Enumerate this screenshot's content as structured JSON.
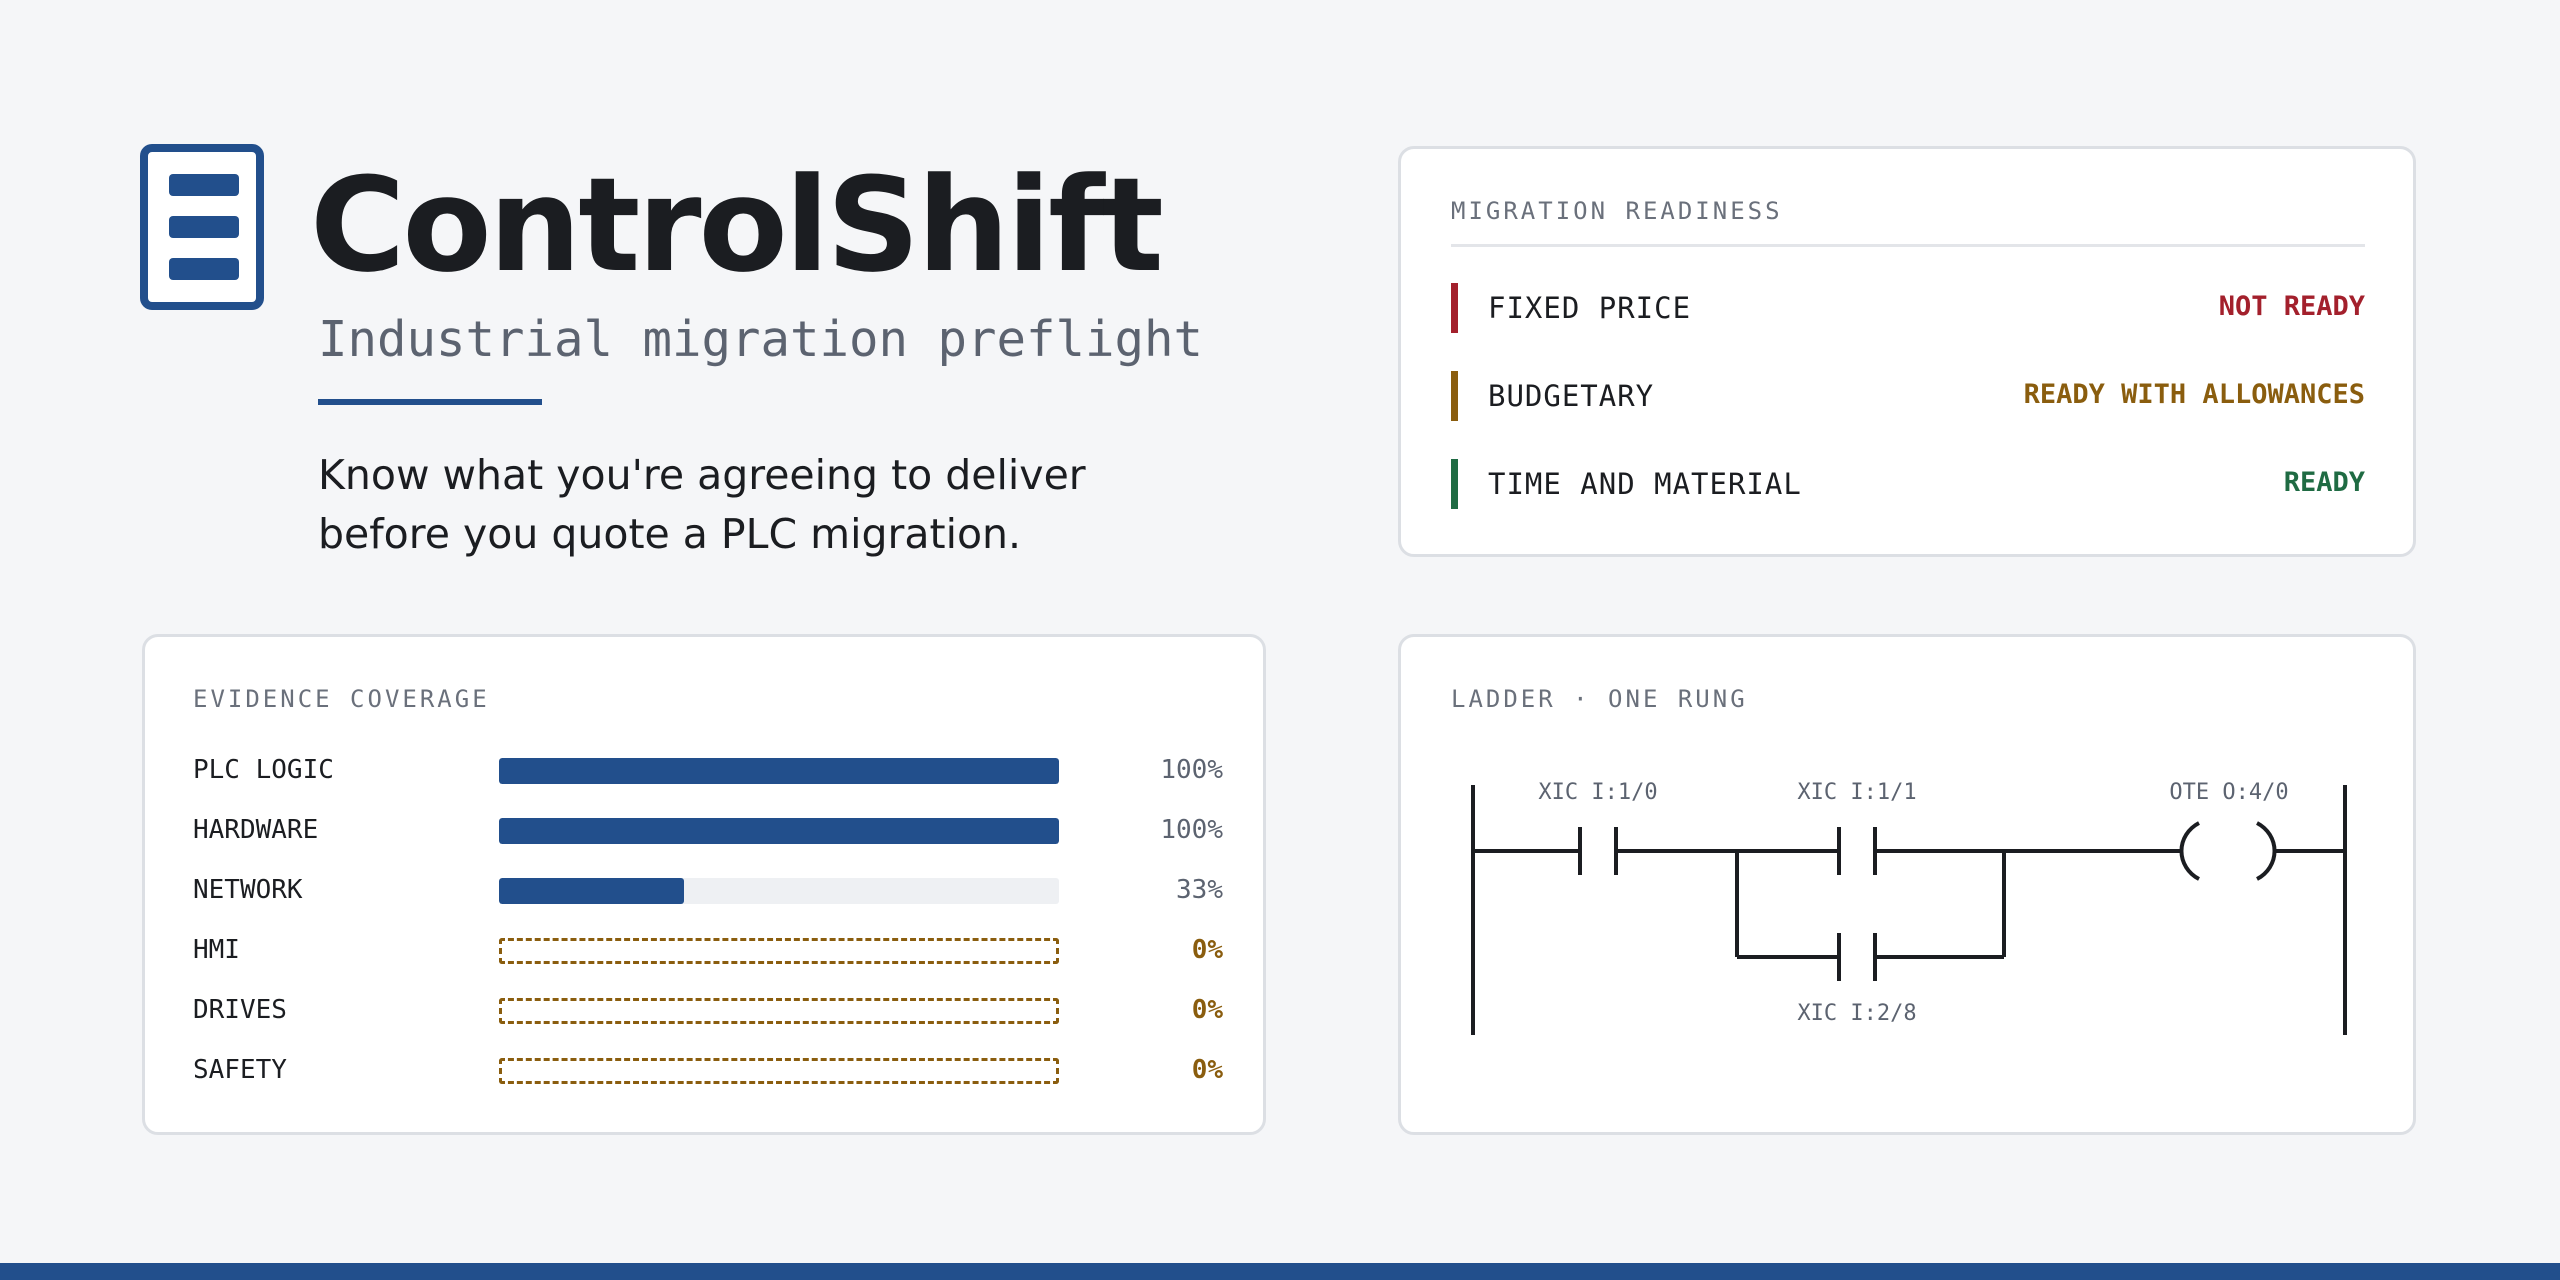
{
  "brand": {
    "logo_icon": "document-lines-icon",
    "name": "ControlShift",
    "subtitle": "Industrial migration preflight",
    "tagline_line1": "Know what you're agreeing to deliver",
    "tagline_line2": "before you quote a PLC migration."
  },
  "colors": {
    "accent": "#224f8c",
    "not_ready": "#a3202c",
    "allowances": "#8a5d0e",
    "ready": "#1f6b43",
    "text": "#1b1d21",
    "muted": "#5c6370"
  },
  "readiness": {
    "title": "MIGRATION READINESS",
    "rows": [
      {
        "name": "FIXED PRICE",
        "status": "NOT READY",
        "level": "not_ready"
      },
      {
        "name": "BUDGETARY",
        "status": "READY WITH ALLOWANCES",
        "level": "allowances"
      },
      {
        "name": "TIME AND MATERIAL",
        "status": "READY",
        "level": "ready"
      }
    ]
  },
  "evidence": {
    "title": "EVIDENCE COVERAGE",
    "rows": [
      {
        "label": "PLC LOGIC",
        "percent": 100,
        "percent_label": "100%"
      },
      {
        "label": "HARDWARE",
        "percent": 100,
        "percent_label": "100%"
      },
      {
        "label": "NETWORK",
        "percent": 33,
        "percent_label": "33%"
      },
      {
        "label": "HMI",
        "percent": 0,
        "percent_label": "0%"
      },
      {
        "label": "DRIVES",
        "percent": 0,
        "percent_label": "0%"
      },
      {
        "label": "SAFETY",
        "percent": 0,
        "percent_label": "0%"
      }
    ]
  },
  "ladder": {
    "title": "LADDER · ONE RUNG",
    "contact_1": "XIC I:1/0",
    "contact_2": "XIC I:1/1",
    "contact_branch": "XIC I:2/8",
    "coil": "OTE O:4/0"
  }
}
